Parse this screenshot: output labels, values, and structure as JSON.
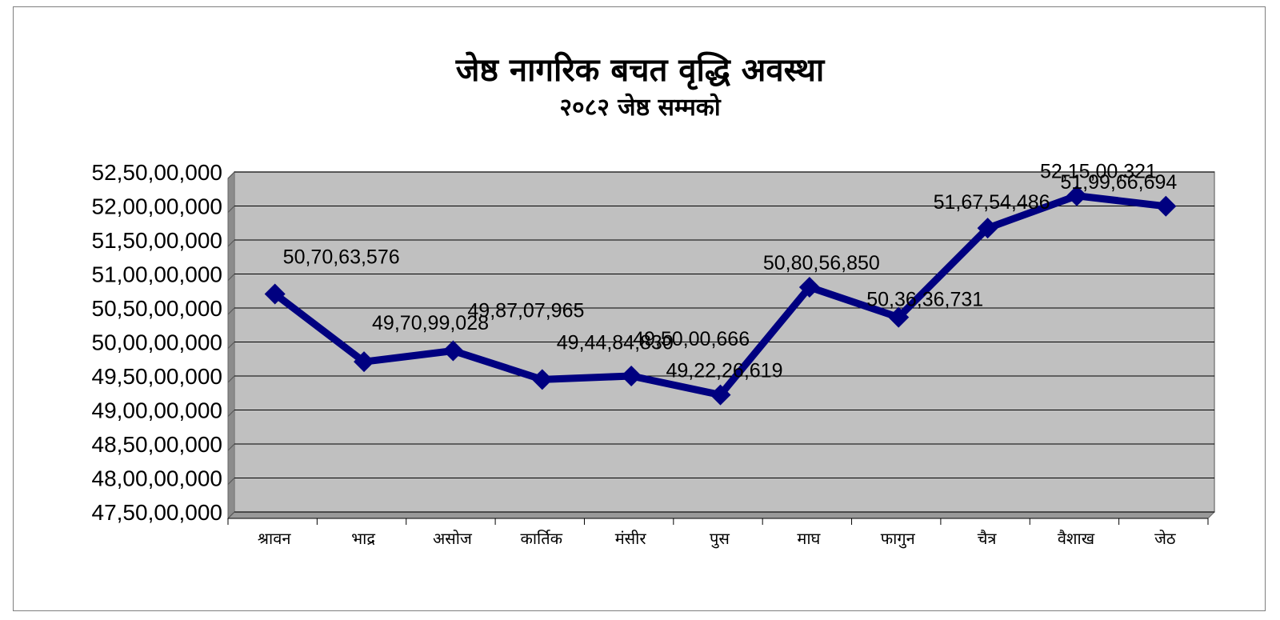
{
  "chart_data": {
    "type": "line",
    "title": "जेष्ठ नागरिक बचत वृद्धि अवस्था",
    "subtitle": "२०८२ जेष्ठ सम्मको",
    "xlabel": "",
    "ylabel": "",
    "ylim": [
      475000000,
      525000000
    ],
    "ytick_step": 5000000,
    "grid": true,
    "legend": "none",
    "colors": {
      "line": "#000080",
      "plot_bg": "#c0c0c0",
      "grid": "#000000"
    },
    "categories": [
      "श्रावन",
      "भाद्र",
      "असोज",
      "कार्तिक",
      "मंसीर",
      "पुस",
      "माघ",
      "फागुन",
      "चैत्र",
      "वैशाख",
      "जेठ"
    ],
    "series": [
      {
        "values": [
          507063576,
          497099028,
          498707965,
          494484830,
          495000666,
          492226619,
          508056850,
          503636731,
          516754486,
          521500321,
          519966694
        ],
        "labels": [
          "50,70,63,576",
          "49,70,99,028",
          "49,87,07,965",
          "49,44,84,830",
          "49,50,00,666",
          "49,22,26,619",
          "50,80,56,850",
          "50,36,36,731",
          "51,67,54,486",
          "52,15,00,321",
          "51,99,66,694"
        ]
      }
    ],
    "ytick_labels": [
      "52,50,00,000",
      "52,00,00,000",
      "51,50,00,000",
      "51,00,00,000",
      "50,50,00,000",
      "50,00,00,000",
      "49,50,00,000",
      "49,00,00,000",
      "48,50,00,000",
      "48,00,00,000",
      "47,50,00,000"
    ]
  }
}
